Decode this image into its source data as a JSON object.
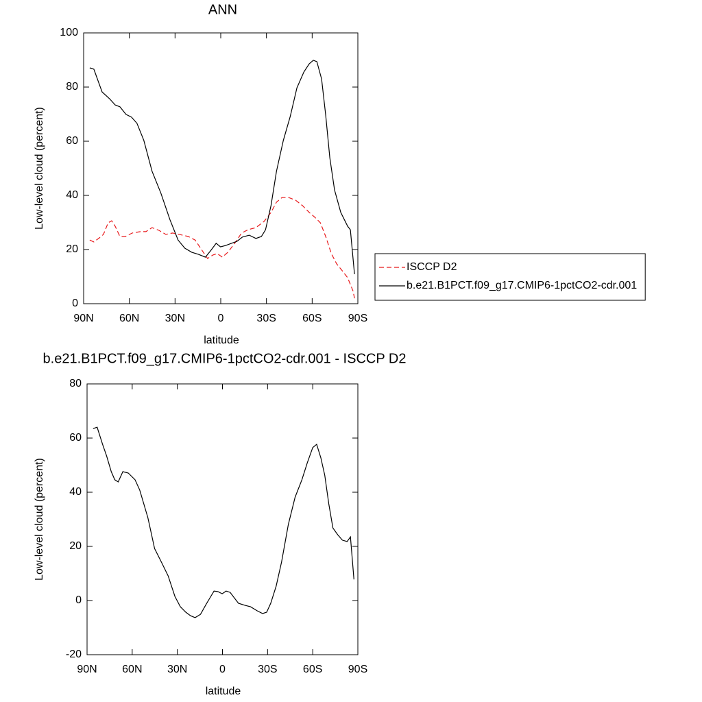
{
  "chart_data": [
    {
      "type": "line",
      "title": "ANN",
      "xlabel": "latitude",
      "ylabel": "Low-level cloud (percent)",
      "xlim": [
        90,
        -90
      ],
      "xticks": [
        {
          "value": 90,
          "label": "90N"
        },
        {
          "value": 60,
          "label": "60N"
        },
        {
          "value": 30,
          "label": "30N"
        },
        0,
        {
          "value": -30,
          "label": "30S"
        },
        {
          "value": -60,
          "label": "60S"
        },
        {
          "value": -90,
          "label": "90S"
        }
      ],
      "ylim": [
        0,
        100
      ],
      "yticks": [
        0,
        20,
        40,
        60,
        80,
        100
      ],
      "legend": "right",
      "series": [
        {
          "name": "ISCCP D2",
          "color": "#e8191b",
          "dashed": true,
          "x": [
            86,
            83.3,
            79.7,
            77,
            73.9,
            71.6,
            69.3,
            66.2,
            62.6,
            58.1,
            52.7,
            49.1,
            45.1,
            40.6,
            36.1,
            31.6,
            27.2,
            21.3,
            16.8,
            12.3,
            8.7,
            5.1,
            2.4,
            -1.1,
            -4.7,
            -9.2,
            -13.7,
            -17.8,
            -23.1,
            -28.5,
            -33,
            -36.6,
            -40.2,
            -44.7,
            -49.2,
            -53.7,
            -58.1,
            -61.8,
            -65.4,
            -68.9,
            -72.6,
            -76.1,
            -79.7,
            -83.3,
            -86.9,
            -87.8
          ],
          "values": [
            23.5,
            22.8,
            24.3,
            25.6,
            29.9,
            30.6,
            28.6,
            24.8,
            24.8,
            26.1,
            26.6,
            26.6,
            28.1,
            27.1,
            25.6,
            26.1,
            25.6,
            24.8,
            23.5,
            19.7,
            16.7,
            18,
            18.5,
            17.2,
            19,
            22.3,
            26.1,
            27.3,
            28.1,
            30.4,
            33.7,
            37.5,
            39.2,
            39.2,
            38.2,
            36.2,
            33.7,
            31.9,
            29.9,
            24.8,
            18.5,
            14.7,
            12.2,
            9.6,
            4.6,
            2
          ]
        },
        {
          "name": "b.e21.B1PCT.f09_g17.CMIP6-1pctCO2-cdr.001",
          "color": "#000000",
          "dashed": false,
          "x": [
            86,
            83.3,
            77.9,
            73,
            69.3,
            66.2,
            62.2,
            58.6,
            55,
            50.5,
            45.1,
            39.3,
            33.4,
            28,
            23.6,
            19.1,
            14.6,
            10.1,
            6.5,
            3,
            0.2,
            -3.3,
            -7,
            -10.6,
            -14.2,
            -18.7,
            -23.1,
            -26.7,
            -29.4,
            -33,
            -36.6,
            -41.1,
            -45.6,
            -50,
            -54.6,
            -58.1,
            -60.8,
            -63.1,
            -66.2,
            -68.9,
            -71.6,
            -74.7,
            -78.8,
            -83.3,
            -85.1,
            -87.8
          ],
          "values": [
            87.1,
            86.6,
            78.2,
            75.7,
            73.4,
            72.7,
            69.9,
            68.9,
            66.6,
            60.3,
            48.9,
            40.8,
            31.1,
            23.5,
            20.5,
            19,
            18.2,
            17.2,
            19.7,
            22.3,
            21,
            21.5,
            22.3,
            23,
            24.6,
            25.3,
            24.1,
            24.8,
            27.3,
            36.2,
            48.9,
            60.3,
            69.1,
            79.7,
            85.6,
            88.6,
            89.9,
            89.4,
            83,
            69.6,
            53.9,
            42,
            33.7,
            28.6,
            27.3,
            10.9
          ]
        }
      ]
    },
    {
      "type": "line",
      "title": "b.e21.B1PCT.f09_g17.CMIP6-1pctCO2-cdr.001 - ISCCP D2",
      "xlabel": "latitude",
      "ylabel": "Low-level cloud (percent)",
      "xlim": [
        90,
        -90
      ],
      "xticks": [
        {
          "value": 90,
          "label": "90N"
        },
        {
          "value": 60,
          "label": "60N"
        },
        {
          "value": 30,
          "label": "30N"
        },
        0,
        {
          "value": -30,
          "label": "30S"
        },
        {
          "value": -60,
          "label": "60S"
        },
        {
          "value": -90,
          "label": "90S"
        }
      ],
      "ylim": [
        -20,
        80
      ],
      "yticks": [
        -20,
        0,
        20,
        40,
        60,
        80
      ],
      "series": [
        {
          "color": "#000000",
          "dashed": false,
          "x": [
            86,
            83.3,
            79.7,
            77,
            73.9,
            71.6,
            69.3,
            66.2,
            62.6,
            58.1,
            55,
            49.6,
            45.1,
            40.6,
            36.1,
            31.6,
            28,
            24.4,
            21.3,
            18.2,
            14.6,
            11,
            8.3,
            5.6,
            3,
            0.2,
            -2.4,
            -5.1,
            -10.6,
            -15.1,
            -18.7,
            -23.1,
            -26.7,
            -29.4,
            -32.1,
            -35.7,
            -39.3,
            -43.8,
            -48.3,
            -52.8,
            -56.4,
            -60,
            -62.6,
            -65.4,
            -68,
            -70.7,
            -73.4,
            -76.6,
            -79.7,
            -82.9,
            -85.1,
            -87.4
          ],
          "values": [
            63.5,
            64,
            57.7,
            53.4,
            47.6,
            44.6,
            43.8,
            47.6,
            47.1,
            44.6,
            40.8,
            30.6,
            19.2,
            14.2,
            9.1,
            1.5,
            -2.3,
            -4.3,
            -5.6,
            -6.3,
            -5.1,
            -1.5,
            1,
            3.5,
            3.3,
            2.5,
            3.5,
            3,
            -1,
            -1.8,
            -2.3,
            -3.8,
            -4.8,
            -4.3,
            -1,
            5.3,
            14.2,
            28.1,
            38.2,
            44.6,
            50.9,
            56.5,
            57.7,
            52.7,
            46.3,
            35.7,
            26.8,
            24.3,
            22.3,
            21.8,
            23.5,
            7.8
          ]
        }
      ]
    }
  ]
}
